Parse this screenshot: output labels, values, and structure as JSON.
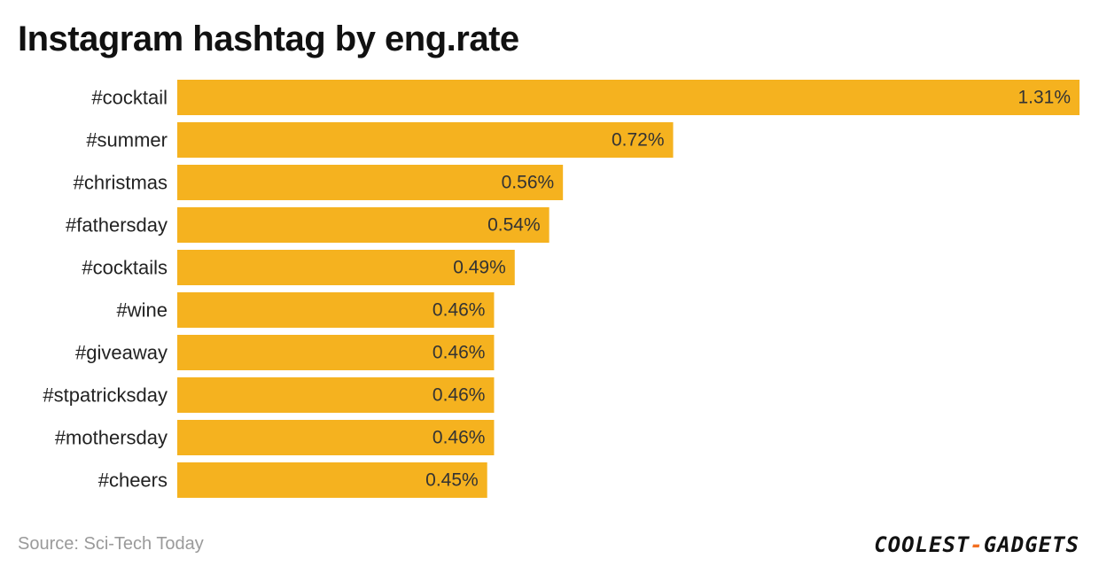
{
  "title": "Instagram hashtag by eng.rate",
  "source": "Source: Sci-Tech Today",
  "logo": {
    "part1": "COOLEST",
    "dash": "-",
    "part2": "GADGETS"
  },
  "colors": {
    "bar": "#f5b21f",
    "logo_dash": "#f26f21"
  },
  "chart_data": {
    "type": "bar",
    "orientation": "horizontal",
    "categories": [
      "#cocktail",
      "#summer",
      "#christmas",
      "#fathersday",
      "#cocktails",
      "#wine",
      "#giveaway",
      "#stpatricksday",
      "#mothersday",
      "#cheers"
    ],
    "values": [
      1.31,
      0.72,
      0.56,
      0.54,
      0.49,
      0.46,
      0.46,
      0.46,
      0.46,
      0.45
    ],
    "value_labels": [
      "1.31%",
      "0.72%",
      "0.56%",
      "0.54%",
      "0.49%",
      "0.46%",
      "0.46%",
      "0.46%",
      "0.46%",
      "0.45%"
    ],
    "xlim": [
      0,
      1.31
    ],
    "unit": "%",
    "grid": false,
    "legend": "none"
  }
}
